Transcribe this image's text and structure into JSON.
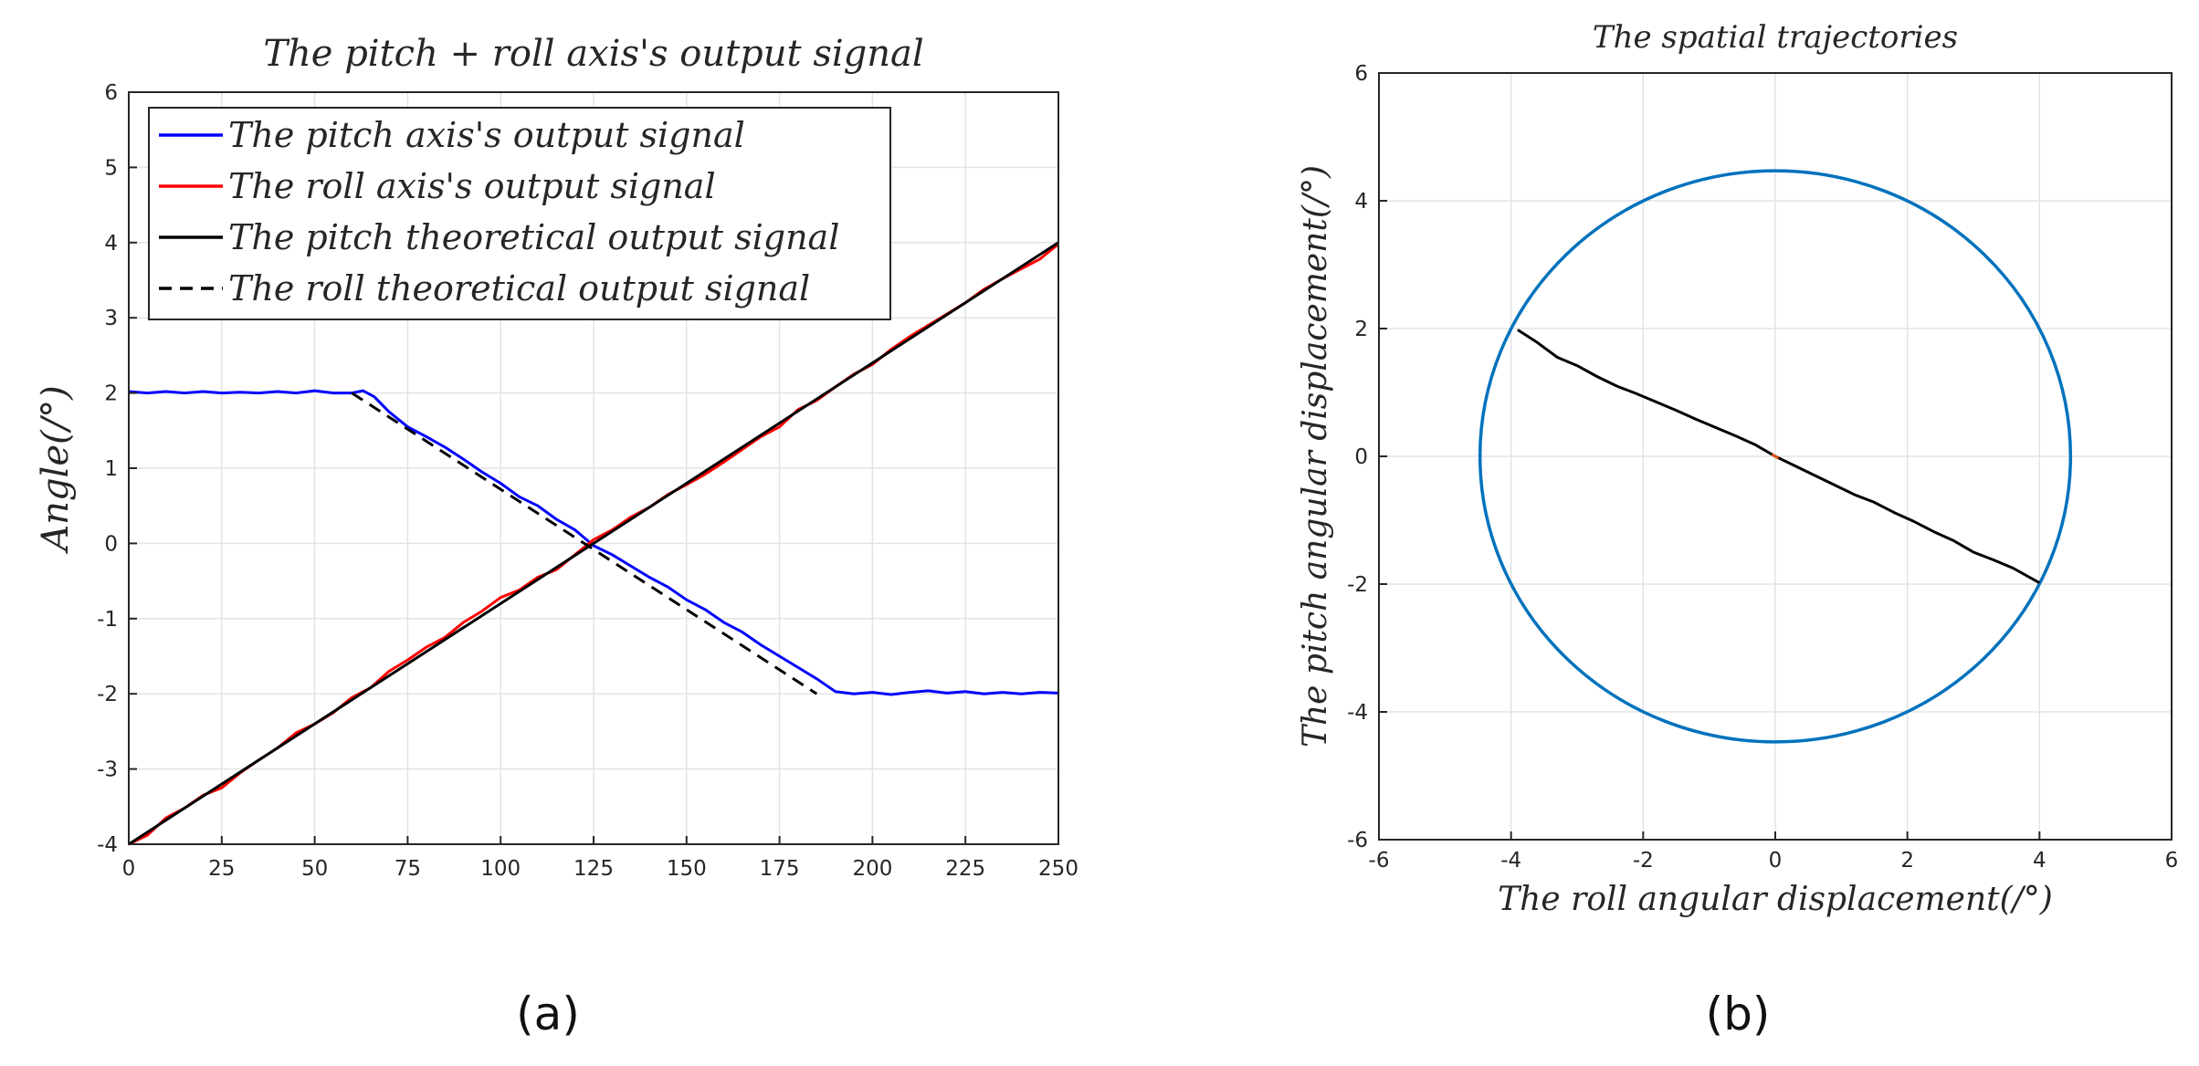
{
  "chart_data": [
    {
      "id": "a",
      "type": "line",
      "title": "The pitch + roll axis's output signal",
      "xlabel": "",
      "ylabel": "Angle(/°)",
      "xlim": [
        0,
        250
      ],
      "ylim": [
        -4,
        6
      ],
      "xticks": [
        0,
        25,
        50,
        75,
        100,
        125,
        150,
        175,
        200,
        225,
        250
      ],
      "yticks": [
        -4,
        -3,
        -2,
        -1,
        0,
        1,
        2,
        3,
        4,
        5,
        6
      ],
      "grid": true,
      "legend_position": "top-left",
      "caption": "(a)",
      "series": [
        {
          "name": "The pitch axis's output signal",
          "color": "#0000ff",
          "style": "solid",
          "x": [
            0,
            5,
            10,
            15,
            20,
            25,
            30,
            35,
            40,
            45,
            50,
            55,
            60,
            63,
            66,
            70,
            75,
            80,
            85,
            90,
            95,
            100,
            105,
            110,
            115,
            120,
            125,
            130,
            135,
            140,
            145,
            150,
            155,
            160,
            165,
            170,
            175,
            180,
            185,
            190,
            195,
            200,
            205,
            210,
            215,
            220,
            225,
            230,
            235,
            240,
            245,
            250
          ],
          "values": [
            2.02,
            2.0,
            2.02,
            2.0,
            2.02,
            2.0,
            2.01,
            2.0,
            2.02,
            2.0,
            2.03,
            2.0,
            2.0,
            2.03,
            1.95,
            1.75,
            1.55,
            1.42,
            1.28,
            1.12,
            0.95,
            0.8,
            0.62,
            0.5,
            0.32,
            0.18,
            -0.03,
            -0.15,
            -0.3,
            -0.45,
            -0.58,
            -0.75,
            -0.88,
            -1.05,
            -1.18,
            -1.35,
            -1.5,
            -1.65,
            -1.8,
            -1.97,
            -2.0,
            -1.98,
            -2.01,
            -1.98,
            -1.96,
            -1.99,
            -1.97,
            -2.0,
            -1.98,
            -2.0,
            -1.98,
            -1.99
          ]
        },
        {
          "name": "The roll axis's output signal",
          "color": "#ff0000",
          "style": "solid",
          "x": [
            0,
            5,
            10,
            15,
            20,
            25,
            30,
            35,
            40,
            45,
            50,
            55,
            60,
            65,
            70,
            75,
            80,
            85,
            90,
            95,
            100,
            105,
            110,
            115,
            120,
            125,
            130,
            135,
            140,
            145,
            150,
            155,
            160,
            165,
            170,
            175,
            180,
            185,
            190,
            195,
            200,
            205,
            210,
            215,
            220,
            225,
            230,
            235,
            240,
            245,
            250
          ],
          "values": [
            -4.0,
            -3.88,
            -3.65,
            -3.52,
            -3.35,
            -3.25,
            -3.05,
            -2.88,
            -2.72,
            -2.52,
            -2.4,
            -2.25,
            -2.05,
            -1.92,
            -1.7,
            -1.55,
            -1.38,
            -1.25,
            -1.05,
            -0.9,
            -0.72,
            -0.62,
            -0.45,
            -0.35,
            -0.15,
            0.05,
            0.18,
            0.35,
            0.48,
            0.65,
            0.78,
            0.92,
            1.08,
            1.25,
            1.42,
            1.55,
            1.78,
            1.9,
            2.08,
            2.25,
            2.38,
            2.58,
            2.75,
            2.9,
            3.05,
            3.2,
            3.38,
            3.52,
            3.65,
            3.78,
            3.98
          ]
        },
        {
          "name": "The pitch theoretical output signal",
          "color": "#000000",
          "style": "solid",
          "x": [
            0,
            250
          ],
          "values": [
            -4,
            4
          ]
        },
        {
          "name": "The roll theoretical output signal",
          "color": "#000000",
          "style": "dashed",
          "x": [
            60,
            185
          ],
          "values": [
            2,
            -2
          ]
        }
      ]
    },
    {
      "id": "b",
      "type": "line",
      "title": "The spatial trajectories",
      "xlabel": "The roll angular displacement(/°)",
      "ylabel": "The pitch angular displacement(/°)",
      "xlim": [
        -6,
        6
      ],
      "ylim": [
        -6,
        6
      ],
      "xticks": [
        -6,
        -4,
        -2,
        0,
        2,
        4,
        6
      ],
      "yticks": [
        -6,
        -4,
        -2,
        0,
        2,
        4,
        6
      ],
      "grid": true,
      "caption": "(b)",
      "series": [
        {
          "name": "circle boundary",
          "color": "#0072bd",
          "style": "solid",
          "shape": "circle",
          "center": [
            0,
            0
          ],
          "radius": 4.47
        },
        {
          "name": "trajectory",
          "color": "#000000",
          "style": "solid",
          "x": [
            -3.9,
            -3.6,
            -3.3,
            -3.0,
            -2.7,
            -2.4,
            -2.1,
            -1.8,
            -1.5,
            -1.2,
            -0.9,
            -0.6,
            -0.3,
            0.0,
            0.3,
            0.6,
            0.9,
            1.2,
            1.5,
            1.8,
            2.1,
            2.4,
            2.7,
            3.0,
            3.3,
            3.6,
            4.0
          ],
          "values": [
            1.98,
            1.78,
            1.55,
            1.42,
            1.25,
            1.1,
            0.98,
            0.85,
            0.72,
            0.58,
            0.45,
            0.32,
            0.18,
            0.0,
            -0.15,
            -0.3,
            -0.45,
            -0.6,
            -0.72,
            -0.88,
            -1.02,
            -1.18,
            -1.32,
            -1.5,
            -1.62,
            -1.75,
            -1.98
          ]
        },
        {
          "name": "origin marker",
          "color": "#d95319",
          "style": "solid",
          "x": [
            -0.05,
            0.05
          ],
          "values": [
            0.03,
            -0.03
          ]
        }
      ]
    }
  ]
}
